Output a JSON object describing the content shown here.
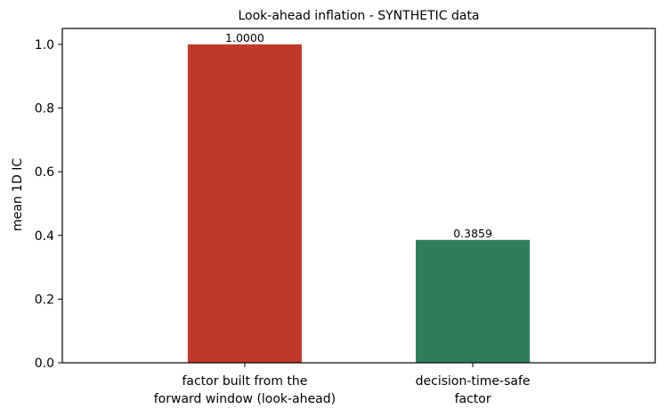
{
  "chart_data": {
    "type": "bar",
    "title": "Look-ahead inflation - SYNTHETIC data",
    "xlabel": "",
    "ylabel": "mean 1D IC",
    "categories": [
      [
        "factor built from the",
        "forward window (look-ahead)"
      ],
      [
        "decision-time-safe",
        "factor"
      ]
    ],
    "values": [
      1.0,
      0.3859
    ],
    "value_labels": [
      "1.0000",
      "0.3859"
    ],
    "colors": [
      "#c0392b",
      "#2e7d5b"
    ],
    "ylim": [
      0,
      1.05
    ],
    "yticks": [
      0.0,
      0.2,
      0.4,
      0.6,
      0.8,
      1.0
    ],
    "ytick_labels": [
      "0.0",
      "0.2",
      "0.4",
      "0.6",
      "0.8",
      "1.0"
    ],
    "grid": false,
    "legend": "none"
  }
}
